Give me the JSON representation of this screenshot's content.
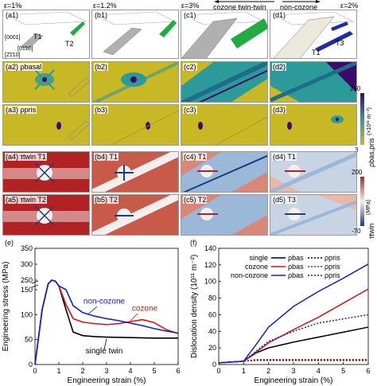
{
  "strain_headers": [
    "ε=1%",
    "ε=1.2%",
    "ε=3%",
    "ε=2%"
  ],
  "twin_headers": {
    "left_arrow": "cozone twin-twin",
    "right_arrow": "non-cozone"
  },
  "rows": [
    {
      "row": "grains",
      "panels": [
        "(a1)",
        "(b1)",
        "(c1)",
        "(d1)"
      ]
    },
    {
      "row": "rho_basal",
      "panels": [
        "(a2) ρbasal",
        "(b2)",
        "(c2)",
        "(d2)"
      ]
    },
    {
      "row": "rho_pris",
      "panels": [
        "(a3) ρpris",
        "(b3)",
        "(c3)",
        "(d3)"
      ]
    },
    {
      "row": "tau_T1",
      "panels": [
        "(a4) τtwin T1",
        "(b4) T1",
        "(c4) T1",
        "(d4) T1"
      ]
    },
    {
      "row": "tau_T2",
      "panels": [
        "(a5) τtwin T2",
        "(b5) T2",
        "(c5) T2",
        "(d5) T3"
      ]
    }
  ],
  "grain_labels": {
    "t1": "T1",
    "t2": "T2",
    "t3": "T3",
    "d_t1": "T1"
  },
  "axis_labels": {
    "z": "[0001]",
    "y": "[01̄10]",
    "x": "[2̄1̄10]"
  },
  "colorbar_rho": {
    "max": "250",
    "min": "3",
    "unit": "(×10¹¹ m⁻²)",
    "symbol": "ρbas,pris"
  },
  "colorbar_tau": {
    "max": "200",
    "min": "-70",
    "unit": "(MPa)",
    "symbol": "τtwin"
  },
  "colors": {
    "rho_low": "#c8b825",
    "rho_mid": "#2d9a9a",
    "rho_high": "#3d0a6a",
    "tau_high": "#b22222",
    "tau_mid": "#f4efee",
    "tau_low": "#1a3d7c",
    "t2_green": "#22aa44",
    "t3_blue": "#1f2fa0",
    "grain_grey": "#b0b0b0"
  },
  "chart_data": [
    {
      "panel": "(e)",
      "type": "line",
      "xlabel": "Engineering strain (%)",
      "ylabel": "Engineering stress (MPa)",
      "xlim": [
        0,
        6
      ],
      "ylim": [
        0,
        350
      ],
      "y_broken_axis": true,
      "xticks": [
        "0",
        "1",
        "2",
        "3",
        "4",
        "5",
        "6"
      ],
      "yticks": [
        "0",
        "50",
        "100",
        "150",
        "250",
        "300",
        "350"
      ],
      "series": [
        {
          "name": "single twin",
          "color": "#000000",
          "x": [
            0,
            0.3,
            0.55,
            0.7,
            0.85,
            1.0,
            1.3,
            1.6,
            2.0,
            2.5,
            3,
            4,
            5,
            6
          ],
          "y": [
            0,
            110,
            210,
            250,
            240,
            190,
            110,
            65,
            58,
            56,
            55,
            54,
            53,
            53
          ]
        },
        {
          "name": "cozone",
          "color": "#dd1111",
          "x": [
            0,
            0.3,
            0.55,
            0.7,
            0.85,
            1.0,
            1.3,
            1.6,
            2.0,
            2.5,
            3,
            3.5,
            4,
            4.5,
            5,
            5.5,
            6
          ],
          "y": [
            0,
            110,
            210,
            250,
            240,
            190,
            120,
            92,
            85,
            82,
            80,
            82,
            86,
            90,
            84,
            70,
            62
          ]
        },
        {
          "name": "non-cozone",
          "color": "#1122cc",
          "x": [
            0,
            0.3,
            0.55,
            0.7,
            0.85,
            1.0,
            1.3,
            1.6,
            2.0,
            2.5,
            3,
            3.5,
            4,
            4.5,
            5,
            5.5,
            6
          ],
          "y": [
            0,
            110,
            210,
            250,
            240,
            190,
            150,
            118,
            104,
            97,
            92,
            88,
            83,
            78,
            72,
            67,
            63
          ]
        }
      ],
      "annotations": [
        "non-cozone",
        "cozone",
        "single twin"
      ]
    },
    {
      "panel": "(f)",
      "type": "line",
      "xlabel": "Engineering strain (%)",
      "ylabel": "Dislocation density (10¹¹ m⁻²)",
      "xlim": [
        0,
        6
      ],
      "ylim": [
        0,
        140
      ],
      "xticks": [
        "0",
        "1",
        "2",
        "3",
        "4",
        "5",
        "6"
      ],
      "yticks": [
        "0",
        "20",
        "40",
        "60",
        "80",
        "100",
        "120",
        "140"
      ],
      "legend_rows": [
        {
          "label": "single",
          "bas": "ρbas",
          "pris": "ρpris",
          "color": "#000000"
        },
        {
          "label": "cozone",
          "bas": "ρbas",
          "pris": "ρpris",
          "color": "#dd1111"
        },
        {
          "label": "non-cozone",
          "bas": "ρbas",
          "pris": "ρpris",
          "color": "#1122cc"
        }
      ],
      "legend_position": "top-left",
      "series": [
        {
          "name": "single ρbas",
          "color": "#000000",
          "dash": false,
          "x": [
            0,
            0.5,
            1.0,
            1.5,
            2,
            3,
            4,
            5,
            6
          ],
          "y": [
            2,
            3,
            4,
            14,
            20,
            27,
            33,
            39,
            45
          ]
        },
        {
          "name": "single ρpris",
          "color": "#000000",
          "dash": true,
          "x": [
            0,
            0.5,
            1.0,
            1.5,
            2,
            3,
            4,
            5,
            6
          ],
          "y": [
            2,
            3,
            4,
            5,
            5,
            5,
            5,
            5,
            5
          ]
        },
        {
          "name": "cozone ρbas",
          "color": "#dd1111",
          "dash": false,
          "x": [
            0,
            0.5,
            1.0,
            1.5,
            2,
            3,
            4,
            5,
            6
          ],
          "y": [
            2,
            3,
            4,
            15,
            26,
            42,
            57,
            74,
            91
          ]
        },
        {
          "name": "cozone ρpris",
          "color": "#dd1111",
          "dash": true,
          "x": [
            0,
            0.5,
            1.0,
            1.5,
            2,
            3,
            4,
            5,
            6
          ],
          "y": [
            2,
            3,
            4,
            6,
            6,
            6,
            6,
            6,
            6
          ]
        },
        {
          "name": "non-cozone ρbas",
          "color": "#1122cc",
          "dash": false,
          "x": [
            0,
            0.5,
            1.0,
            1.5,
            2,
            3,
            4,
            5,
            6
          ],
          "y": [
            2,
            3,
            4,
            24,
            45,
            70,
            88,
            104,
            121
          ]
        },
        {
          "name": "non-cozone ρpris",
          "color": "#1122cc",
          "dash": true,
          "x": [
            0,
            0.5,
            1.0,
            1.5,
            2,
            3,
            4,
            5,
            6
          ],
          "y": [
            2,
            3,
            4,
            16,
            28,
            40,
            50,
            55,
            60
          ]
        }
      ]
    }
  ]
}
